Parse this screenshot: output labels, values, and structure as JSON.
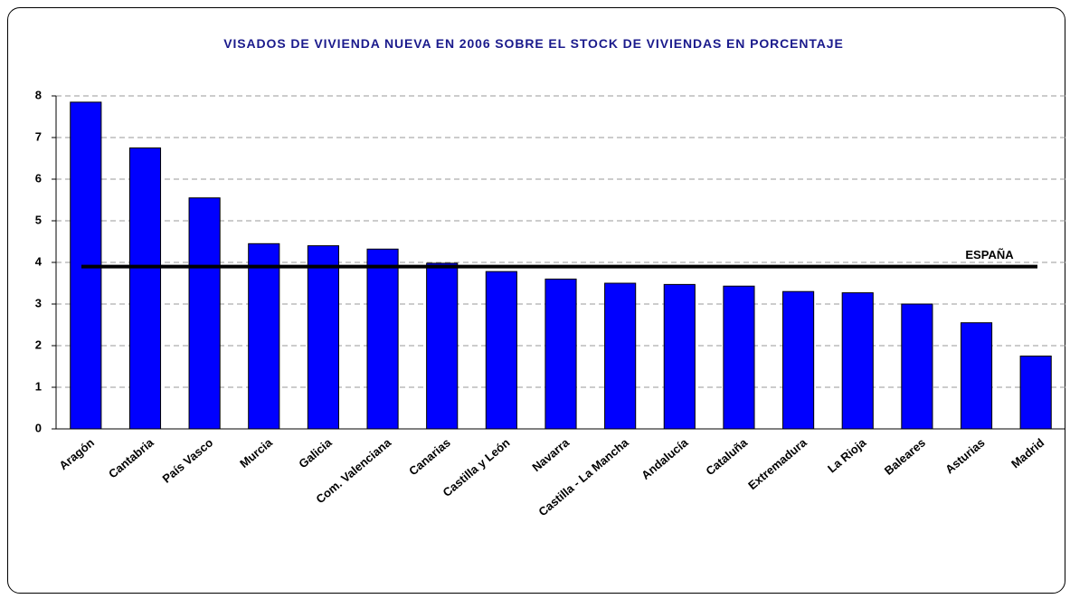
{
  "chart_data": {
    "type": "bar",
    "title": "VISADOS DE VIVIENDA NUEVA EN 2006 SOBRE EL STOCK DE VIVIENDAS EN PORCENTAJE",
    "categories": [
      "Aragón",
      "Cantabria",
      "País Vasco",
      "Murcia",
      "Galicia",
      "Com. Valenciana",
      "Canarias",
      "Castilla y León",
      "Navarra",
      "Castilla - La Mancha",
      "Andalucía",
      "Cataluña",
      "Extremadura",
      "La Rioja",
      "Baleares",
      "Asturias",
      "Madrid"
    ],
    "values": [
      7.85,
      6.75,
      5.55,
      4.45,
      4.4,
      4.32,
      3.98,
      3.78,
      3.6,
      3.5,
      3.47,
      3.43,
      3.3,
      3.27,
      3.0,
      2.55,
      1.75
    ],
    "color": "#0000ff",
    "ylim": [
      0,
      8
    ],
    "yticks": [
      0,
      1,
      2,
      3,
      4,
      5,
      6,
      7,
      8
    ],
    "grid": true,
    "reference_line": {
      "label": "ESPAÑA",
      "value": 3.9,
      "color": "#000000"
    }
  }
}
